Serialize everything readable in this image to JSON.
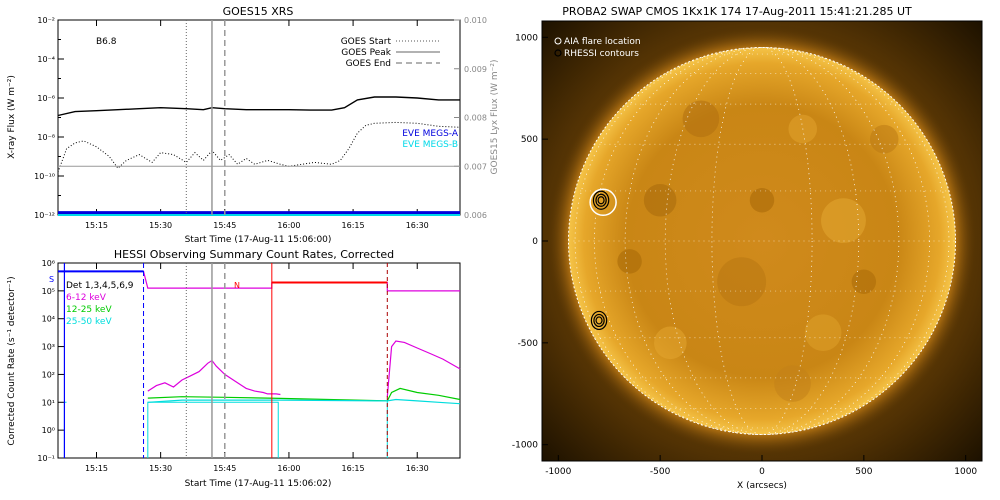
{
  "chart_data": [
    {
      "panel": "goes",
      "type": "line",
      "title": "GOES15 XRS",
      "xlabel": "Start Time (17-Aug-11 15:06:00)",
      "ylabel": "X-ray Flux (W m⁻²)",
      "ylabel_right": "GOES15 Lyx Flux (W m⁻²)",
      "x_ticks": [
        "15:15",
        "15:30",
        "15:45",
        "16:00",
        "16:15",
        "16:30"
      ],
      "x_tick_minutes": [
        15,
        30,
        45,
        60,
        75,
        90
      ],
      "x_range_minutes": [
        6,
        100
      ],
      "y_log_range": [
        -12,
        -2
      ],
      "y_ticks": [
        "10⁻¹²",
        "10⁻¹⁰",
        "10⁻⁸",
        "10⁻⁶",
        "10⁻⁴",
        "10⁻²"
      ],
      "y_tick_exponents": [
        -12,
        -10,
        -8,
        -6,
        -4,
        -2
      ],
      "y_right_range": [
        0.006,
        0.01
      ],
      "y_right_ticks": [
        "0.006",
        "0.007",
        "0.008",
        "0.009",
        "0.010"
      ],
      "y_right_tick_values": [
        0.006,
        0.007,
        0.008,
        0.009,
        0.01
      ],
      "class_label": "B6.8",
      "legend": {
        "goes_start": "GOES Start",
        "goes_peak": "GOES Peak",
        "goes_end": "GOES End",
        "eve_a": "EVE MEGS-A",
        "eve_b": "EVE MEGS-B"
      },
      "markers_minutes": {
        "start": 36,
        "peak": 42,
        "end": 45
      },
      "series": [
        {
          "name": "long",
          "x": [
            6,
            10,
            15,
            20,
            25,
            30,
            36,
            40,
            42,
            45,
            50,
            55,
            60,
            65,
            70,
            73,
            76,
            80,
            85,
            90,
            95,
            100
          ],
          "log_flux": [
            -6.9,
            -6.7,
            -6.65,
            -6.6,
            -6.55,
            -6.5,
            -6.55,
            -6.6,
            -6.5,
            -6.55,
            -6.6,
            -6.6,
            -6.6,
            -6.62,
            -6.62,
            -6.5,
            -6.1,
            -5.95,
            -5.95,
            -6.0,
            -6.1,
            -6.1
          ]
        },
        {
          "name": "short",
          "x": [
            6,
            8,
            10,
            12,
            15,
            18,
            20,
            22,
            25,
            28,
            30,
            33,
            36,
            38,
            40,
            42,
            44,
            46,
            48,
            50,
            52,
            55,
            58,
            60,
            63,
            66,
            70,
            72,
            74,
            76,
            78,
            80,
            85,
            90,
            95,
            100
          ],
          "log_flux": [
            -9.8,
            -8.6,
            -8.3,
            -8.2,
            -8.5,
            -9.0,
            -9.6,
            -9.2,
            -8.9,
            -9.3,
            -8.8,
            -8.9,
            -9.3,
            -8.8,
            -9.2,
            -8.7,
            -9.2,
            -8.9,
            -9.4,
            -9.1,
            -9.4,
            -9.2,
            -9.4,
            -9.5,
            -9.4,
            -9.3,
            -9.4,
            -9.2,
            -8.6,
            -7.8,
            -7.4,
            -7.3,
            -7.25,
            -7.3,
            -7.45,
            -7.5
          ]
        },
        {
          "name": "lyman",
          "x": [
            6,
            100
          ],
          "value": [
            0.007,
            0.007
          ]
        },
        {
          "name": "EVE MEGS-A",
          "x": [
            6,
            100
          ],
          "value": [
            0.00605,
            0.00605
          ]
        },
        {
          "name": "EVE MEGS-B",
          "x": [
            6,
            100
          ],
          "value": [
            0.006,
            0.006
          ]
        }
      ]
    },
    {
      "panel": "hessi",
      "type": "line",
      "title": "HESSI Observing Summary Count Rates, Corrected",
      "xlabel": "Start Time (17-Aug-11 15:06:02)",
      "ylabel": "Corrected Count Rate (s⁻¹ detector⁻¹)",
      "x_ticks": [
        "15:15",
        "15:30",
        "15:45",
        "16:00",
        "16:15",
        "16:30"
      ],
      "x_tick_minutes": [
        15,
        30,
        45,
        60,
        75,
        90
      ],
      "x_range_minutes": [
        6,
        100
      ],
      "y_log_range": [
        -1,
        6
      ],
      "y_ticks": [
        "10⁻¹",
        "10⁰",
        "10¹",
        "10²",
        "10³",
        "10⁴",
        "10⁵",
        "10⁶"
      ],
      "y_tick_exponents": [
        -1,
        0,
        1,
        2,
        3,
        4,
        5,
        6
      ],
      "detectors": "Det 1,3,4,5,6,9",
      "flags": {
        "s": "S",
        "n": "N"
      },
      "markers_minutes": {
        "start": 36,
        "peak": 42,
        "end": 45
      },
      "series": [
        {
          "name": "6-12 keV",
          "x": [
            27,
            29,
            31,
            33,
            35,
            37,
            39,
            41,
            42,
            43,
            45,
            47,
            49,
            50,
            52,
            54,
            55,
            56,
            57,
            58
          ],
          "log_rate": [
            1.4,
            1.6,
            1.7,
            1.55,
            1.8,
            1.95,
            2.1,
            2.4,
            2.5,
            2.3,
            2.0,
            1.8,
            1.6,
            1.5,
            1.4,
            1.35,
            1.3,
            1.3,
            1.3,
            1.28
          ]
        },
        {
          "name": "6-12 keV post",
          "x": [
            83,
            84,
            85,
            87,
            90,
            93,
            96,
            100
          ],
          "log_rate": [
            1.2,
            3.0,
            3.2,
            3.15,
            2.95,
            2.75,
            2.55,
            2.2
          ]
        },
        {
          "name": "12-25 keV",
          "x": [
            27,
            35,
            45,
            55,
            58,
            83,
            84,
            86,
            90,
            95,
            100
          ],
          "log_rate": [
            1.15,
            1.2,
            1.18,
            1.15,
            1.14,
            1.05,
            1.35,
            1.5,
            1.35,
            1.25,
            1.1
          ]
        },
        {
          "name": "25-50 keV",
          "x": [
            27,
            35,
            45,
            55,
            58,
            83,
            85,
            90,
            95,
            100
          ],
          "log_rate": [
            1.0,
            1.08,
            1.08,
            1.08,
            1.08,
            1.05,
            1.1,
            1.05,
            1.0,
            0.95
          ]
        },
        {
          "name": "attenuator",
          "x": [
            6,
            26,
            27,
            56,
            56,
            83,
            83,
            100
          ],
          "log_rate": [
            5.7,
            5.7,
            5.1,
            5.1,
            5.3,
            5.3,
            5.0,
            5.0
          ]
        }
      ]
    },
    {
      "panel": "swap",
      "type": "scatter",
      "title": "PROBA2 SWAP CMOS 1Kx1K 174 17-Aug-2011 15:41:21.285 UT",
      "xlabel": "X (arcsecs)",
      "ylabel": "",
      "x_ticks": [
        "-1000",
        "-500",
        "0",
        "500",
        "1000"
      ],
      "x_tick_values": [
        -1000,
        -500,
        0,
        500,
        1000
      ],
      "y_ticks": [
        "-1000",
        "-500",
        "0",
        "500",
        "1000"
      ],
      "y_tick_values": [
        -1000,
        -500,
        0,
        500,
        1000
      ],
      "xlim": [
        -1080,
        1080
      ],
      "ylim": [
        -1080,
        1080
      ],
      "solar_radius_arcsec": 950,
      "legend": {
        "aia": "AIA flare location",
        "rhessi": "RHESSI contours"
      },
      "aia_flare_arcsec": [
        -780,
        190
      ],
      "rhessi_sources_arcsec": [
        [
          -790,
          200
        ],
        [
          -800,
          -390
        ]
      ]
    }
  ]
}
